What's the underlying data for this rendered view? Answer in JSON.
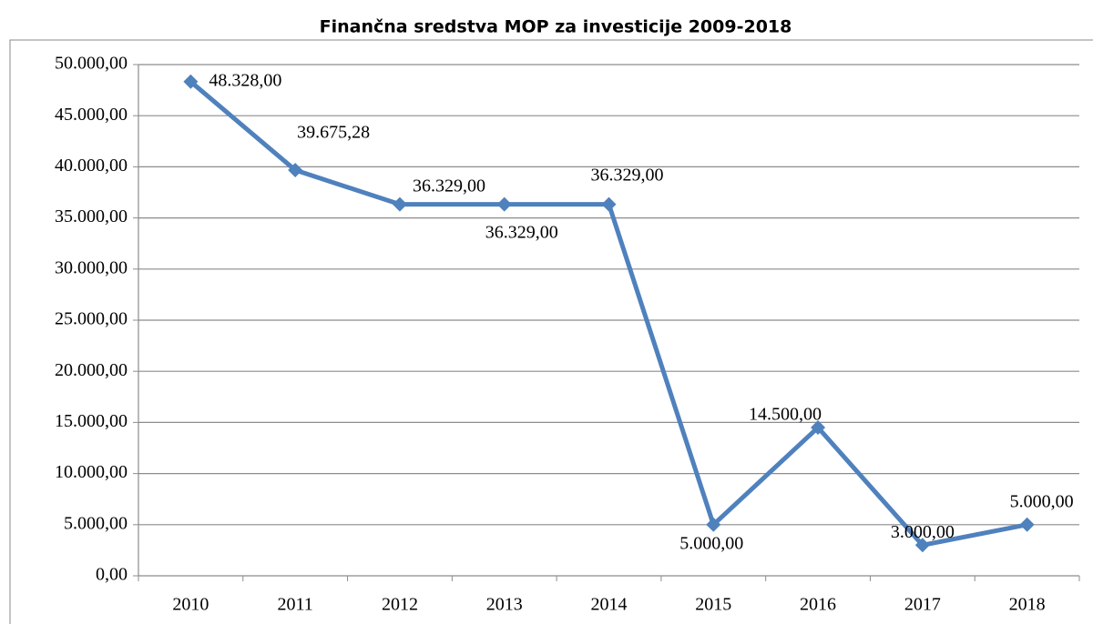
{
  "chart_data": {
    "type": "line",
    "title": "Finančna sredstva MOP za investicije 2009-2018",
    "categories": [
      "2010",
      "2011",
      "2012",
      "2013",
      "2014",
      "2015",
      "2016",
      "2017",
      "2018"
    ],
    "series": [
      {
        "name": "Finančna sredstva",
        "color": "#4f81bd",
        "values": [
          48328,
          39675.28,
          36329,
          36329,
          36329,
          5000,
          14500,
          3000,
          5000
        ],
        "value_labels": [
          "48.328,00",
          "39.675,28",
          "36.329,00",
          "36.329,00",
          "36.329,00",
          "5.000,00",
          "14.500,00",
          "3.000,00",
          "5.000,00"
        ]
      }
    ],
    "ylim": [
      0,
      50000
    ],
    "yticks": [
      {
        "value": 0,
        "label": "0,00"
      },
      {
        "value": 5000,
        "label": "5.000,00"
      },
      {
        "value": 10000,
        "label": "10.000,00"
      },
      {
        "value": 15000,
        "label": "15.000,00"
      },
      {
        "value": 20000,
        "label": "20.000,00"
      },
      {
        "value": 25000,
        "label": "25.000,00"
      },
      {
        "value": 30000,
        "label": "30.000,00"
      },
      {
        "value": 35000,
        "label": "35.000,00"
      },
      {
        "value": 40000,
        "label": "40.000,00"
      },
      {
        "value": 45000,
        "label": "45.000,00"
      },
      {
        "value": 50000,
        "label": "50.000,00"
      }
    ],
    "grid": true
  }
}
